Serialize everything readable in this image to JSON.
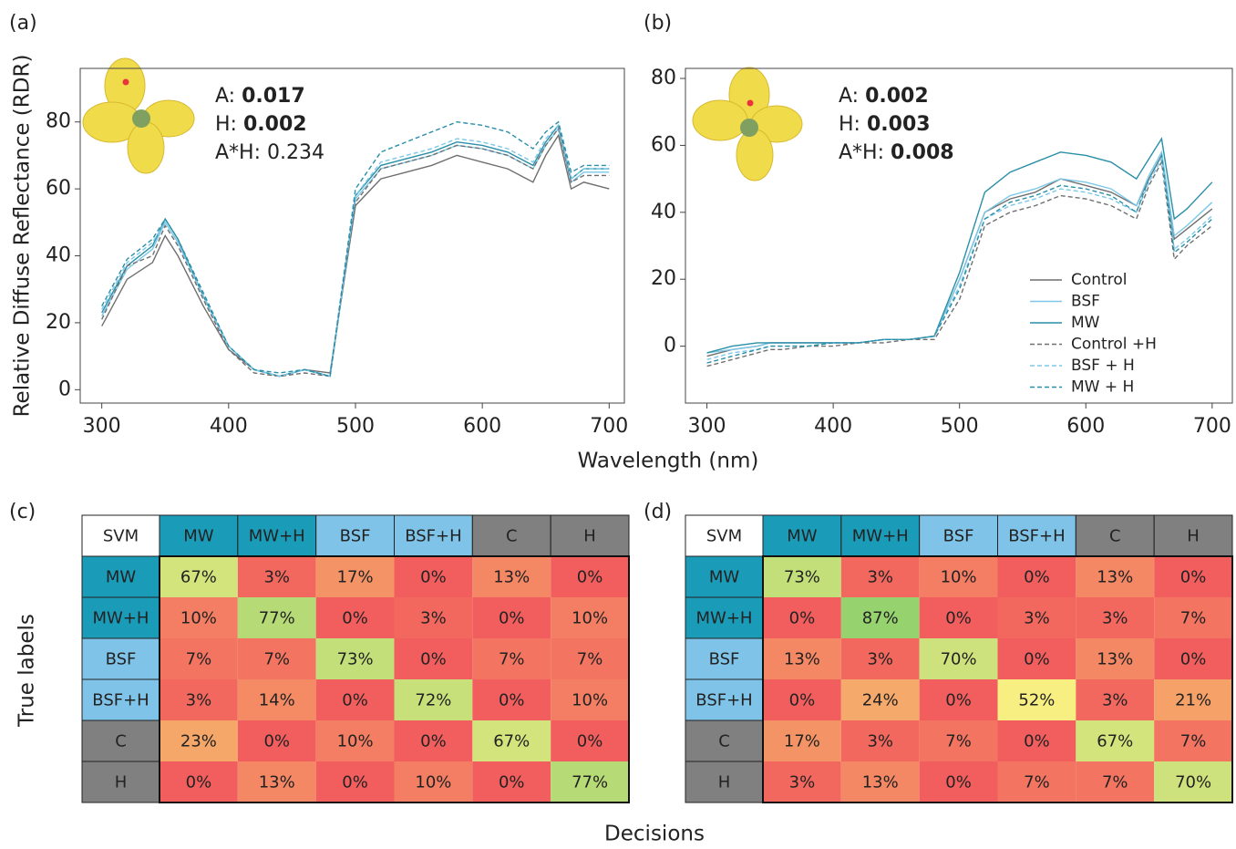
{
  "chart_data": [
    {
      "type": "line",
      "label": "(a)",
      "ylabel": "Relative Diffuse Reflectance (RDR)",
      "xlabel": "Wavelength (nm)",
      "xlim": [
        283,
        712
      ],
      "ylim": [
        -4,
        96
      ],
      "xticks": [
        300,
        400,
        500,
        600,
        700
      ],
      "yticks": [
        0,
        20,
        40,
        60,
        80
      ],
      "legend": false,
      "annotations": [
        {
          "label": "A:",
          "value": 0.017,
          "bold": true
        },
        {
          "label": "H:",
          "value": 0.002,
          "bold": true
        },
        {
          "label": "A*H:",
          "value": 0.234,
          "bold": false
        }
      ],
      "x": [
        300,
        320,
        340,
        350,
        360,
        380,
        400,
        420,
        440,
        460,
        480,
        500,
        520,
        540,
        560,
        580,
        600,
        620,
        640,
        650,
        660,
        670,
        680,
        700
      ],
      "series": [
        {
          "color": "#6f6f6f",
          "dash": false,
          "values": [
            19,
            33,
            38,
            46,
            40,
            25,
            12,
            6,
            4,
            6,
            5,
            55,
            63,
            65,
            67,
            70,
            68,
            66,
            62,
            70,
            76,
            60,
            62,
            60
          ]
        },
        {
          "color": "#7cc8e8",
          "dash": false,
          "values": [
            22,
            36,
            42,
            50,
            44,
            28,
            13,
            6,
            4,
            6,
            4,
            57,
            66,
            68,
            70,
            73,
            72,
            70,
            66,
            73,
            78,
            62,
            65,
            65
          ]
        },
        {
          "color": "#2a8fa8",
          "dash": false,
          "values": [
            23,
            37,
            43,
            51,
            45,
            28,
            13,
            6,
            4,
            6,
            4,
            58,
            67,
            69,
            71,
            74,
            73,
            71,
            67,
            74,
            79,
            63,
            66,
            66
          ]
        },
        {
          "color": "#6f6f6f",
          "dash": true,
          "values": [
            21,
            37,
            40,
            49,
            43,
            27,
            12,
            5,
            4,
            5,
            4,
            56,
            66,
            68,
            70,
            73,
            72,
            70,
            66,
            73,
            78,
            62,
            64,
            64
          ]
        },
        {
          "color": "#7cc8e8",
          "dash": true,
          "values": [
            24,
            38,
            44,
            50,
            44,
            28,
            13,
            6,
            4,
            6,
            4,
            58,
            68,
            70,
            72,
            75,
            74,
            72,
            68,
            75,
            79,
            63,
            66,
            66
          ]
        },
        {
          "color": "#2a8fa8",
          "dash": true,
          "values": [
            25,
            39,
            45,
            51,
            45,
            29,
            13,
            6,
            5,
            6,
            4,
            60,
            71,
            74,
            77,
            80,
            79,
            77,
            72,
            77,
            80,
            65,
            67,
            67
          ]
        }
      ]
    },
    {
      "type": "line",
      "label": "(b)",
      "xlim": [
        283,
        716
      ],
      "ylim": [
        -17,
        83
      ],
      "xticks": [
        300,
        400,
        500,
        600,
        700
      ],
      "yticks": [
        0,
        20,
        40,
        60,
        80
      ],
      "legend": "lower right",
      "annotations": [
        {
          "label": "A:",
          "value": 0.002,
          "bold": true
        },
        {
          "label": "H:",
          "value": 0.003,
          "bold": true
        },
        {
          "label": "A*H:",
          "value": 0.008,
          "bold": true
        }
      ],
      "x": [
        300,
        320,
        340,
        350,
        360,
        380,
        400,
        420,
        440,
        460,
        480,
        500,
        520,
        540,
        560,
        580,
        600,
        620,
        640,
        650,
        660,
        670,
        680,
        700
      ],
      "series": [
        {
          "name": "Control",
          "color": "#6f6f6f",
          "dash": false,
          "values": [
            -3,
            -1,
            0,
            1,
            1,
            1,
            1,
            1,
            2,
            2,
            3,
            20,
            40,
            44,
            46,
            50,
            48,
            46,
            42,
            50,
            57,
            32,
            35,
            41
          ]
        },
        {
          "name": "BSF",
          "color": "#7cc8e8",
          "dash": false,
          "values": [
            -2,
            -1,
            0,
            1,
            1,
            1,
            1,
            1,
            2,
            2,
            3,
            20,
            40,
            45,
            47,
            50,
            49,
            47,
            42,
            51,
            58,
            33,
            36,
            43
          ]
        },
        {
          "name": "MW",
          "color": "#2a8fa8",
          "dash": false,
          "values": [
            -2,
            0,
            1,
            1,
            1,
            1,
            1,
            1,
            2,
            2,
            3,
            22,
            46,
            52,
            55,
            58,
            57,
            55,
            50,
            56,
            62,
            38,
            41,
            49
          ]
        },
        {
          "name": "Control +H",
          "color": "#6f6f6f",
          "dash": true,
          "values": [
            -6,
            -4,
            -2,
            -1,
            -1,
            0,
            0,
            1,
            1,
            2,
            2,
            14,
            36,
            40,
            42,
            45,
            44,
            42,
            38,
            48,
            55,
            26,
            30,
            36
          ]
        },
        {
          "name": "BSF + H",
          "color": "#7cc8e8",
          "dash": true,
          "values": [
            -4,
            -2,
            -1,
            0,
            0,
            0,
            1,
            1,
            2,
            2,
            3,
            18,
            38,
            42,
            44,
            47,
            46,
            44,
            40,
            49,
            56,
            29,
            32,
            39
          ]
        },
        {
          "name": "MW + H",
          "color": "#2a8fa8",
          "dash": true,
          "values": [
            -5,
            -3,
            -1,
            0,
            0,
            0,
            1,
            1,
            2,
            2,
            3,
            17,
            38,
            43,
            45,
            48,
            47,
            45,
            40,
            50,
            57,
            28,
            31,
            38
          ]
        }
      ]
    },
    {
      "type": "heatmap",
      "label": "(c)",
      "xlabel": "Decisions",
      "ylabel": "True labels",
      "corner": "SVM",
      "col_labels": [
        "MW",
        "MW+H",
        "BSF",
        "BSF+H",
        "C",
        "H"
      ],
      "row_labels": [
        "MW",
        "MW+H",
        "BSF",
        "BSF+H",
        "C",
        "H"
      ],
      "label_colors": [
        "#1a9bb8",
        "#1a9bb8",
        "#7fc4e8",
        "#7fc4e8",
        "#808080",
        "#808080"
      ],
      "colormap": {
        "stops": [
          0,
          22,
          52,
          70,
          90
        ],
        "colors": [
          "#f25e5e",
          "#f5a468",
          "#f8ef82",
          "#cde27c",
          "#8ccf6b"
        ]
      },
      "values": [
        [
          67,
          3,
          17,
          0,
          13,
          0
        ],
        [
          10,
          77,
          0,
          3,
          0,
          10
        ],
        [
          7,
          7,
          73,
          0,
          7,
          7
        ],
        [
          3,
          14,
          0,
          72,
          0,
          10
        ],
        [
          23,
          0,
          10,
          0,
          67,
          0
        ],
        [
          0,
          13,
          0,
          10,
          0,
          77
        ]
      ],
      "value_labels": [
        [
          "67%",
          "3%",
          "17%",
          "0%",
          "13%",
          "0%"
        ],
        [
          "10%",
          "77%",
          "0%",
          "3%",
          "0%",
          "10%"
        ],
        [
          "7%",
          "7%",
          "73%",
          "0%",
          "7%",
          "7%"
        ],
        [
          "3%",
          "14%",
          "0%",
          "72%",
          "0%",
          "10%"
        ],
        [
          "23%",
          "0%",
          "10%",
          "0%",
          "67%",
          "0%"
        ],
        [
          "0%",
          "13%",
          "0%",
          "10%",
          "0%",
          "77%"
        ]
      ]
    },
    {
      "type": "heatmap",
      "label": "(d)",
      "corner": "SVM",
      "col_labels": [
        "MW",
        "MW+H",
        "BSF",
        "BSF+H",
        "C",
        "H"
      ],
      "row_labels": [
        "MW",
        "MW+H",
        "BSF",
        "BSF+H",
        "C",
        "H"
      ],
      "label_colors": [
        "#1a9bb8",
        "#1a9bb8",
        "#7fc4e8",
        "#7fc4e8",
        "#808080",
        "#808080"
      ],
      "colormap": {
        "stops": [
          0,
          22,
          52,
          70,
          90
        ],
        "colors": [
          "#f25e5e",
          "#f5a468",
          "#f8ef82",
          "#cde27c",
          "#8ccf6b"
        ]
      },
      "values": [
        [
          73,
          3,
          10,
          0,
          13,
          0
        ],
        [
          0,
          87,
          0,
          3,
          3,
          7
        ],
        [
          13,
          3,
          70,
          0,
          13,
          0
        ],
        [
          0,
          24,
          0,
          52,
          3,
          21
        ],
        [
          17,
          3,
          7,
          0,
          67,
          7
        ],
        [
          3,
          13,
          0,
          7,
          7,
          70
        ]
      ],
      "value_labels": [
        [
          "73%",
          "3%",
          "10%",
          "0%",
          "13%",
          "0%"
        ],
        [
          "0%",
          "87%",
          "0%",
          "3%",
          "3%",
          "7%"
        ],
        [
          "13%",
          "3%",
          "70%",
          "0%",
          "13%",
          "0%"
        ],
        [
          "0%",
          "24%",
          "0%",
          "52%",
          "3%",
          "21%"
        ],
        [
          "17%",
          "3%",
          "7%",
          "0%",
          "67%",
          "7%"
        ],
        [
          "3%",
          "13%",
          "0%",
          "7%",
          "7%",
          "70%"
        ]
      ]
    }
  ]
}
